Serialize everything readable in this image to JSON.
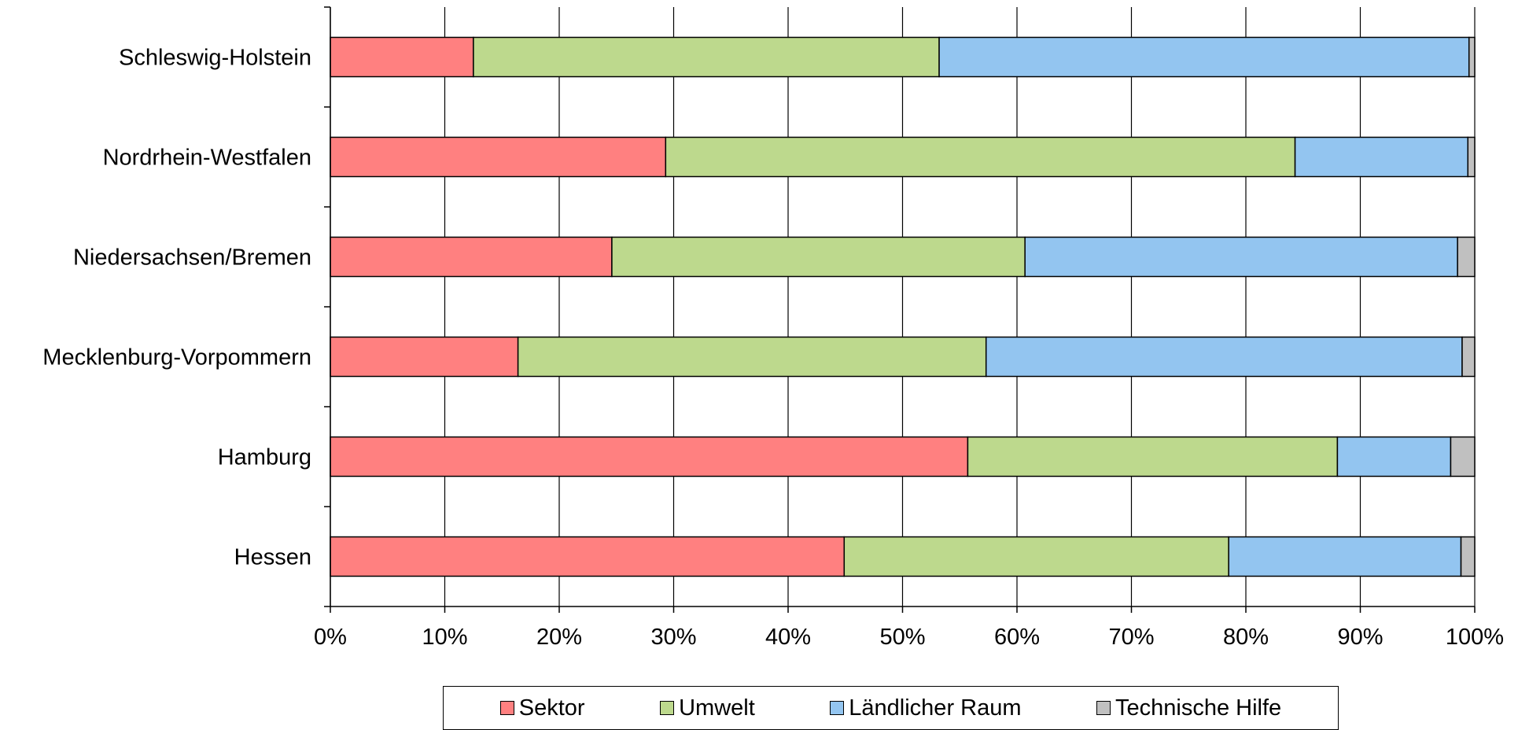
{
  "chart_data": {
    "type": "bar",
    "orientation": "horizontal",
    "stacked": "percent",
    "categories": [
      "Schleswig-Holstein",
      "Nordrhein-Westfalen",
      "Niedersachsen/Bremen",
      "Mecklenburg-Vorpommern",
      "Hamburg",
      "Hessen"
    ],
    "series": [
      {
        "name": "Sektor",
        "color": "#FF8080",
        "values": [
          12.5,
          29.3,
          24.6,
          16.4,
          55.7,
          44.9
        ]
      },
      {
        "name": "Umwelt",
        "color": "#BDD98D",
        "values": [
          40.7,
          55.0,
          36.1,
          40.9,
          32.3,
          33.6
        ]
      },
      {
        "name": "Ländlicher Raum",
        "color": "#93C5F0",
        "values": [
          46.3,
          15.1,
          37.8,
          41.6,
          9.9,
          20.3
        ]
      },
      {
        "name": "Technische Hilfe",
        "color": "#C0C0C0",
        "values": [
          0.5,
          0.6,
          1.5,
          1.1,
          2.1,
          1.2
        ]
      }
    ],
    "xlim": [
      0,
      100
    ],
    "xticks": [
      "0%",
      "10%",
      "20%",
      "30%",
      "40%",
      "50%",
      "60%",
      "70%",
      "80%",
      "90%",
      "100%"
    ],
    "grid": true,
    "legend_position": "bottom"
  }
}
